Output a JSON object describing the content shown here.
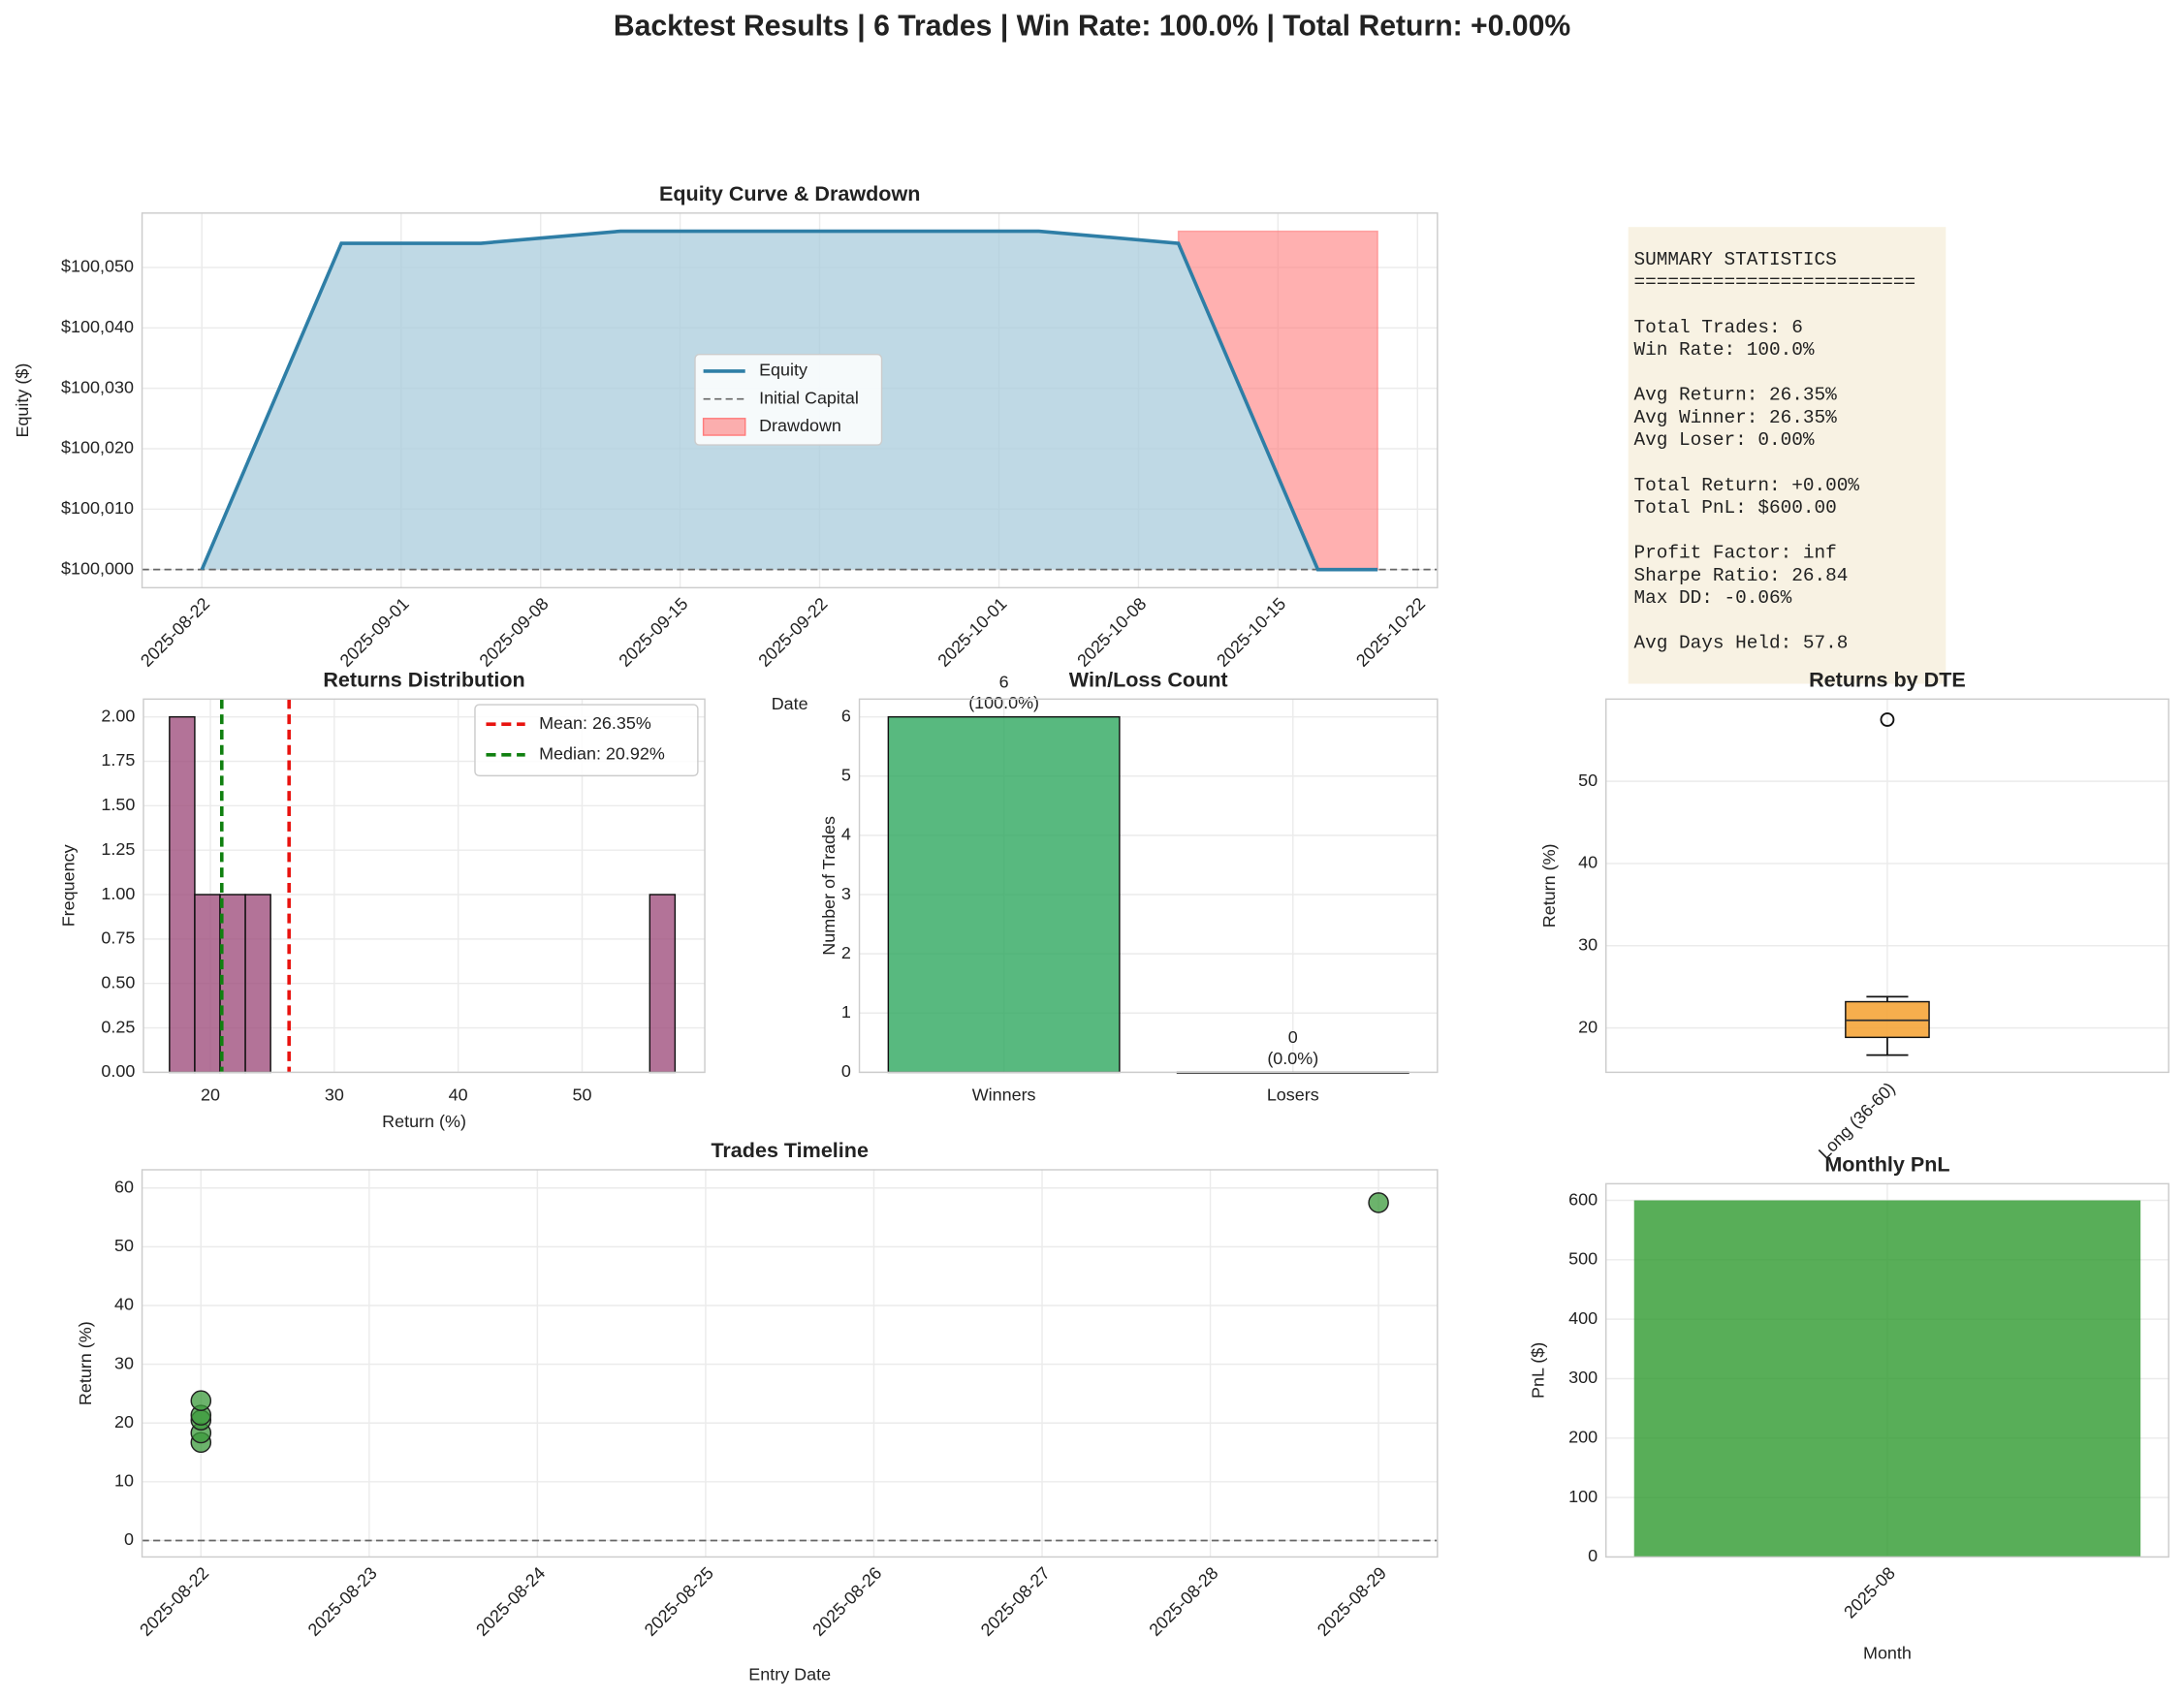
{
  "title": "Backtest Results | 6 Trades | Win Rate: 100.0% | Total Return: +0.00%",
  "summary": {
    "blocks": [
      [
        "SUMMARY STATISTICS",
        "========================="
      ],
      [
        "Total Trades: 6",
        "Win Rate: 100.0%"
      ],
      [
        "Avg Return: 26.35%",
        "Avg Winner: 26.35%",
        "Avg Loser: 0.00%"
      ],
      [
        "Total Return: +0.00%",
        "Total PnL: $600.00"
      ],
      [
        "Profit Factor: inf",
        "Sharpe Ratio: 26.84",
        "Max DD: -0.06%"
      ],
      [
        "Avg Days Held: 57.8"
      ]
    ]
  },
  "chart_data": [
    {
      "type": "line",
      "title": "Equity Curve & Drawdown",
      "xlabel": "Date",
      "ylabel": "Equity ($)",
      "x": [
        "2025-08-22",
        "2025-08-29",
        "2025-09-05",
        "2025-09-12",
        "2025-10-03",
        "2025-10-10",
        "2025-10-17",
        "2025-10-20"
      ],
      "series": [
        {
          "name": "Equity",
          "style": "line",
          "color": "#2e7ea6",
          "fill": "#a9ccdc",
          "values": [
            100000,
            100054,
            100054,
            100056,
            100056,
            100054,
            100000,
            100000
          ]
        },
        {
          "name": "Drawdown",
          "style": "band",
          "color": "#ff7b7b",
          "values": [
            null,
            null,
            null,
            null,
            null,
            100056,
            100056,
            100056
          ]
        }
      ],
      "hlines": [
        {
          "name": "Initial Capital",
          "value": 100000,
          "color": "#666666"
        }
      ],
      "xlim": [
        "2025-08-19",
        "2025-10-23"
      ],
      "xticks": [
        "2025-08-22",
        "2025-09-01",
        "2025-09-08",
        "2025-09-15",
        "2025-09-22",
        "2025-10-01",
        "2025-10-08",
        "2025-10-15",
        "2025-10-22"
      ],
      "ylim": [
        99997,
        100059
      ],
      "yticks": [
        {
          "value": 100000,
          "label": "$100,000"
        },
        {
          "value": 100010,
          "label": "$100,010"
        },
        {
          "value": 100020,
          "label": "$100,020"
        },
        {
          "value": 100030,
          "label": "$100,030"
        },
        {
          "value": 100040,
          "label": "$100,040"
        },
        {
          "value": 100050,
          "label": "$100,050"
        }
      ],
      "grid": true,
      "legend": "center"
    },
    {
      "type": "histogram",
      "title": "Returns Distribution",
      "xlabel": "Return (%)",
      "ylabel": "Frequency",
      "bins": [
        16.7,
        18.74,
        20.78,
        22.82,
        24.86,
        26.9,
        28.94,
        30.98,
        33.02,
        35.06,
        37.1,
        39.14,
        41.18,
        43.22,
        45.26,
        47.3,
        49.34,
        51.38,
        53.42,
        55.46,
        57.5
      ],
      "counts": [
        2,
        1,
        1,
        1,
        0,
        0,
        0,
        0,
        0,
        0,
        0,
        0,
        0,
        0,
        0,
        0,
        0,
        0,
        0,
        1
      ],
      "color": "#a0507e",
      "vlines": [
        {
          "name": "Mean: 26.35%",
          "value": 26.35,
          "color": "#e8130f"
        },
        {
          "name": "Median: 20.92%",
          "value": 20.92,
          "color": "#108010"
        }
      ],
      "xlim": [
        14.6,
        59.9
      ],
      "xticks": [
        20,
        30,
        40,
        50
      ],
      "ylim": [
        0,
        2.1
      ],
      "yticks": [
        {
          "value": 0,
          "label": "0.00"
        },
        {
          "value": 0.25,
          "label": "0.25"
        },
        {
          "value": 0.5,
          "label": "0.50"
        },
        {
          "value": 0.75,
          "label": "0.75"
        },
        {
          "value": 1,
          "label": "1.00"
        },
        {
          "value": 1.25,
          "label": "1.25"
        },
        {
          "value": 1.5,
          "label": "1.50"
        },
        {
          "value": 1.75,
          "label": "1.75"
        },
        {
          "value": 2,
          "label": "2.00"
        }
      ],
      "grid": true,
      "legend": "upper right"
    },
    {
      "type": "bar",
      "title": "Win/Loss Count",
      "ylabel": "Number of Trades",
      "categories": [
        "Winners",
        "Losers"
      ],
      "values": [
        6,
        0
      ],
      "value_labels": [
        "6\n(100.0%)",
        "0\n(0.0%)"
      ],
      "colors": [
        "#2ea85f",
        "#e74c3c"
      ],
      "ylim": [
        0,
        6.3
      ],
      "yticks": [
        0,
        1,
        2,
        3,
        4,
        5,
        6
      ],
      "grid": true
    },
    {
      "type": "box",
      "title": "Returns by DTE",
      "ylabel": "Return (%)",
      "categories": [
        "Long (36-60)"
      ],
      "boxes": [
        {
          "whislo": 16.7,
          "q1": 18.85,
          "med": 20.92,
          "q3": 23.19,
          "whishi": 23.8,
          "fliers": [
            57.5
          ]
        }
      ],
      "color": "#f5a53a",
      "ylim": [
        14.6,
        60
      ],
      "yticks": [
        20,
        30,
        40,
        50
      ],
      "grid": true
    },
    {
      "type": "scatter",
      "title": "Trades Timeline",
      "xlabel": "Entry Date",
      "ylabel": "Return (%)",
      "x": [
        "2025-08-22",
        "2025-08-22",
        "2025-08-22",
        "2025-08-22",
        "2025-08-22",
        "2025-08-29"
      ],
      "values": [
        16.7,
        18.3,
        20.5,
        21.34,
        23.8,
        57.5
      ],
      "color": "#3b9a3b",
      "hlines": [
        {
          "value": 0,
          "color": "#666666"
        }
      ],
      "xlim": [
        "2025-08-21T15:36",
        "2025-08-29T08:24"
      ],
      "xticks": [
        "2025-08-22",
        "2025-08-23",
        "2025-08-24",
        "2025-08-25",
        "2025-08-26",
        "2025-08-27",
        "2025-08-28",
        "2025-08-29"
      ],
      "ylim": [
        -2.8,
        63.1
      ],
      "yticks": [
        0,
        10,
        20,
        30,
        40,
        50,
        60
      ],
      "grid": true
    },
    {
      "type": "bar",
      "title": "Monthly PnL",
      "xlabel": "Month",
      "ylabel": "PnL ($)",
      "categories": [
        "2025-08"
      ],
      "values": [
        600
      ],
      "colors": [
        "#2e9a2e"
      ],
      "ylim": [
        0,
        628
      ],
      "yticks": [
        0,
        100,
        200,
        300,
        400,
        500,
        600
      ],
      "grid": true
    }
  ]
}
